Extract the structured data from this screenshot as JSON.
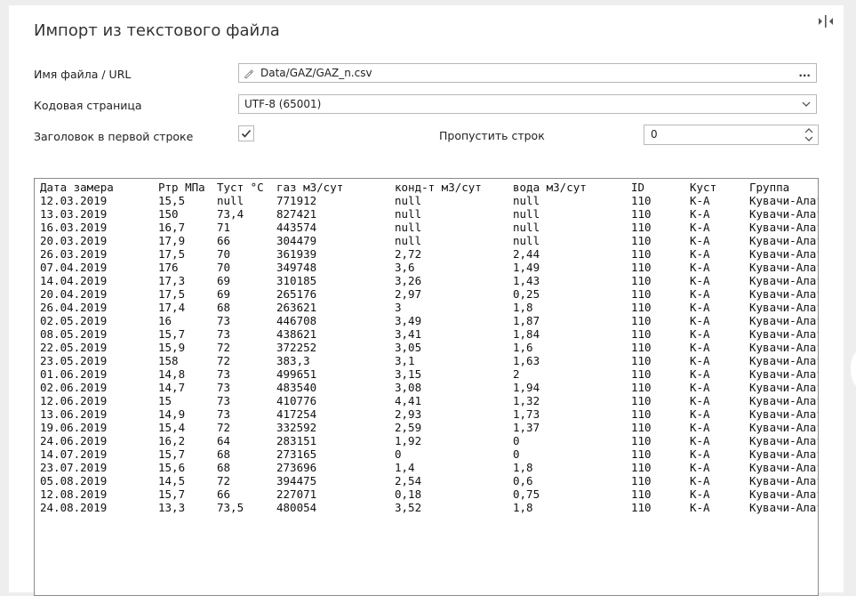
{
  "dialog": {
    "title": "Импорт из текстового файла",
    "collapse_icon": "collapse-panel-icon"
  },
  "form": {
    "file_label": "Имя файла / URL",
    "file_value": "Data/GAZ/GAZ_n.csv",
    "browse_label": "...",
    "encoding_label": "Кодовая страница",
    "encoding_value": "UTF-8 (65001)",
    "header_label": "Заголовок в первой строке",
    "header_checked": true,
    "skip_label": "Пропустить строк",
    "skip_value": "0"
  },
  "preview": {
    "headers": [
      "Дата замера",
      "Ртр МПа",
      "Туст °С",
      "газ м3/сут",
      "конд-т м3/сут",
      "вода м3/сут",
      "ID",
      "Куст",
      "Группа"
    ],
    "rows": [
      [
        "12.03.2019",
        "15,5",
        "null",
        "771912",
        "null",
        "null",
        "110",
        "К-А",
        "Кувачи-Алат"
      ],
      [
        "13.03.2019",
        "150",
        "73,4",
        "827421",
        "null",
        "null",
        "110",
        "К-А",
        "Кувачи-Алат"
      ],
      [
        "16.03.2019",
        "16,7",
        "71",
        "443574",
        "null",
        "null",
        "110",
        "К-А",
        "Кувачи-Алат"
      ],
      [
        "20.03.2019",
        "17,9",
        "66",
        "304479",
        "null",
        "null",
        "110",
        "К-А",
        "Кувачи-Алат"
      ],
      [
        "26.03.2019",
        "17,5",
        "70",
        "361939",
        "2,72",
        "2,44",
        "110",
        "К-А",
        "Кувачи-Алат"
      ],
      [
        "07.04.2019",
        "176",
        "70",
        "349748",
        "3,6",
        "1,49",
        "110",
        "К-А",
        "Кувачи-Алат"
      ],
      [
        "14.04.2019",
        "17,3",
        "69",
        "310185",
        "3,26",
        "1,43",
        "110",
        "К-А",
        "Кувачи-Алат"
      ],
      [
        "20.04.2019",
        "17,5",
        "69",
        "265176",
        "2,97",
        "0,25",
        "110",
        "К-А",
        "Кувачи-Алат"
      ],
      [
        "26.04.2019",
        "17,4",
        "68",
        "263621",
        "3",
        "1,8",
        "110",
        "К-А",
        "Кувачи-Алат"
      ],
      [
        "02.05.2019",
        "16",
        "73",
        "446708",
        "3,49",
        "1,87",
        "110",
        "К-А",
        "Кувачи-Алат"
      ],
      [
        "08.05.2019",
        "15,7",
        "73",
        "438621",
        "3,41",
        "1,84",
        "110",
        "К-А",
        "Кувачи-Алат"
      ],
      [
        "22.05.2019",
        "15,9",
        "72",
        "372252",
        "3,05",
        "1,6",
        "110",
        "К-А",
        "Кувачи-Алат"
      ],
      [
        "23.05.2019",
        "158",
        "72",
        "383,3",
        "3,1",
        "1,63",
        "110",
        "К-А",
        "Кувачи-Алат"
      ],
      [
        "01.06.2019",
        "14,8",
        "73",
        "499651",
        "3,15",
        "2",
        "110",
        "К-А",
        "Кувачи-Алат"
      ],
      [
        "02.06.2019",
        "14,7",
        "73",
        "483540",
        "3,08",
        "1,94",
        "110",
        "К-А",
        "Кувачи-Алат"
      ],
      [
        "12.06.2019",
        "15",
        "73",
        "410776",
        "4,41",
        "1,32",
        "110",
        "К-А",
        "Кувачи-Алат"
      ],
      [
        "13.06.2019",
        "14,9",
        "73",
        "417254",
        "2,93",
        "1,73",
        "110",
        "К-А",
        "Кувачи-Алат"
      ],
      [
        "19.06.2019",
        "15,4",
        "72",
        "332592",
        "2,59",
        "1,37",
        "110",
        "К-А",
        "Кувачи-Алат"
      ],
      [
        "24.06.2019",
        "16,2",
        "64",
        "283151",
        "1,92",
        "0",
        "110",
        "К-А",
        "Кувачи-Алат"
      ],
      [
        "14.07.2019",
        "15,7",
        "68",
        "273165",
        "0",
        "0",
        "110",
        "К-А",
        "Кувачи-Алат"
      ],
      [
        "23.07.2019",
        "15,6",
        "68",
        "273696",
        "1,4",
        "1,8",
        "110",
        "К-А",
        "Кувачи-Алат"
      ],
      [
        "05.08.2019",
        "14,5",
        "72",
        "394475",
        "2,54",
        "0,6",
        "110",
        "К-А",
        "Кувачи-Алат"
      ],
      [
        "12.08.2019",
        "15,7",
        "66",
        "227071",
        "0,18",
        "0,75",
        "110",
        "К-А",
        "Кувачи-Алат"
      ],
      [
        "24.08.2019",
        "13,3",
        "73,5",
        "480054",
        "3,52",
        "1,8",
        "110",
        "К-А",
        "Кувачи-Алат"
      ]
    ]
  }
}
